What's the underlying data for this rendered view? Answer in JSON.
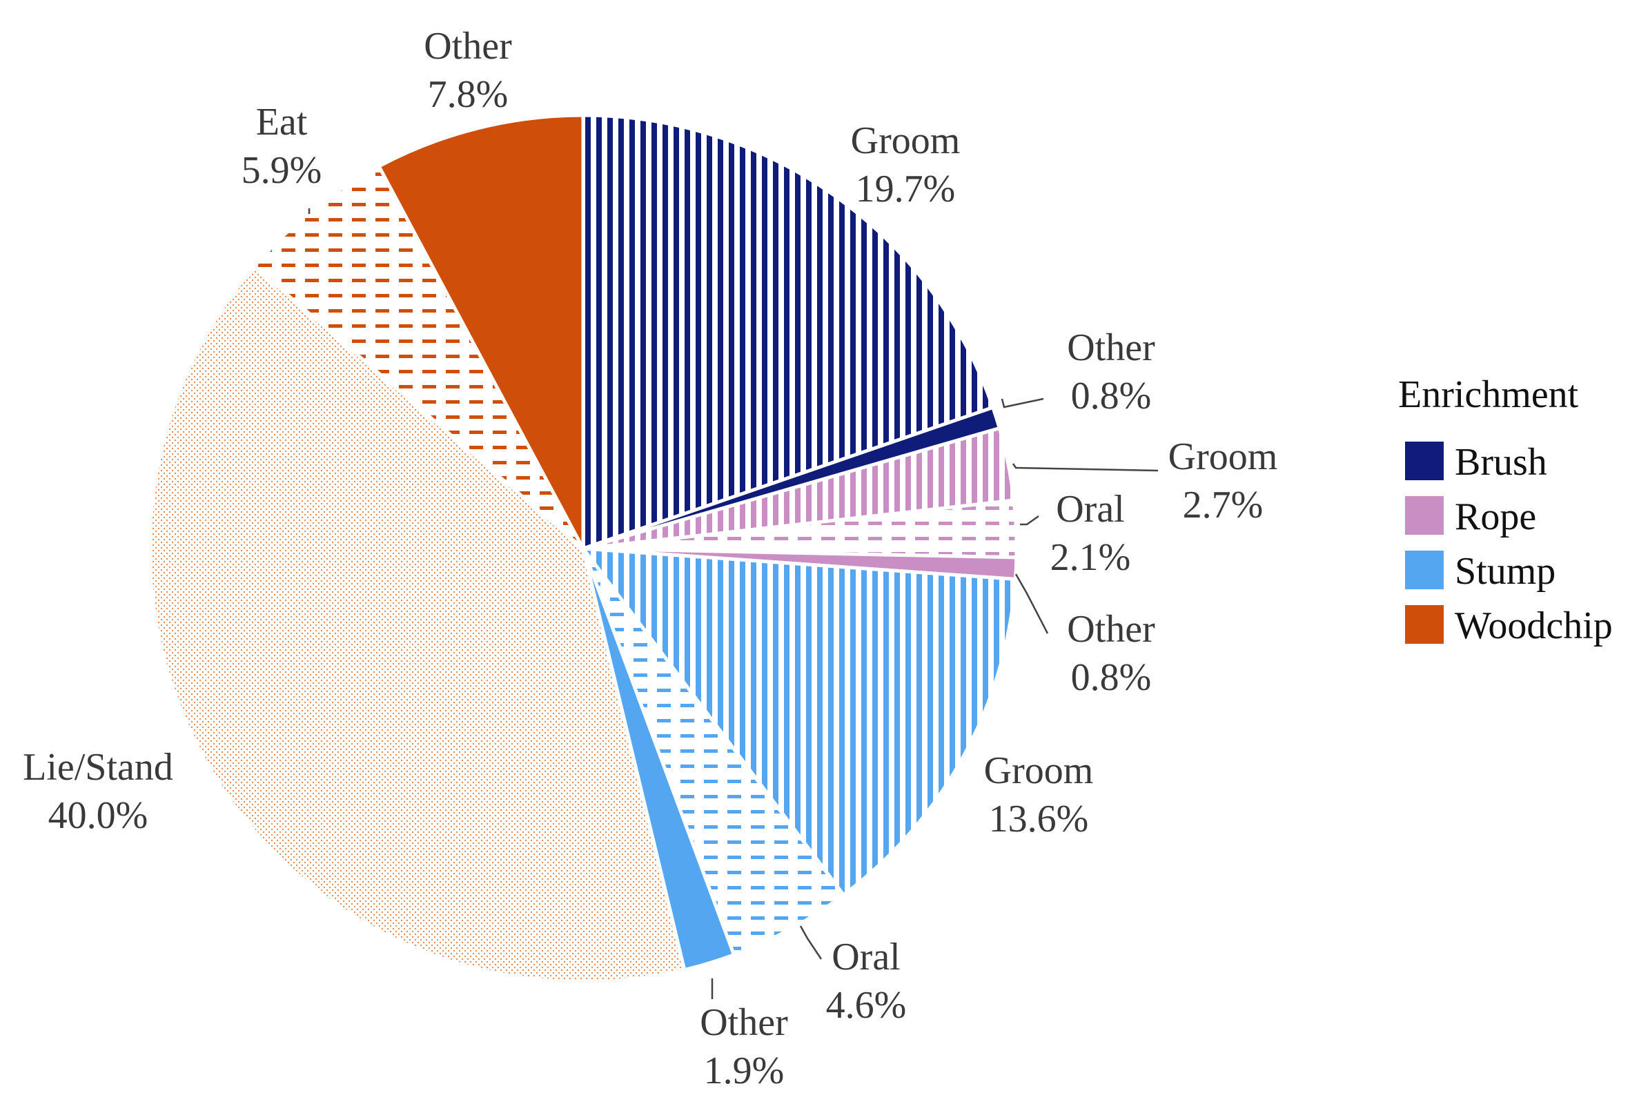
{
  "chart_data": {
    "type": "pie",
    "start_angle_deg": 0,
    "direction": "clockwise",
    "colors": {
      "Brush": "#101c7a",
      "Rope": "#c98fc4",
      "Stump": "#55a6f0",
      "Woodchip": "#cf4e0a"
    },
    "slices": [
      {
        "enrichment": "Brush",
        "behavior": "Groom",
        "value": 19.7,
        "pattern": "vstripe",
        "name_text": "Groom",
        "value_text": "19.7%",
        "leader": false
      },
      {
        "enrichment": "Brush",
        "behavior": "Other",
        "value": 0.8,
        "pattern": "solid",
        "name_text": "Other",
        "value_text": "0.8%",
        "leader": true
      },
      {
        "enrichment": "Rope",
        "behavior": "Groom",
        "value": 2.7,
        "pattern": "vstripe",
        "name_text": "Groom",
        "value_text": "2.7%",
        "leader": true
      },
      {
        "enrichment": "Rope",
        "behavior": "Oral",
        "value": 2.1,
        "pattern": "hdash",
        "name_text": "Oral",
        "value_text": "2.1%",
        "leader": true
      },
      {
        "enrichment": "Rope",
        "behavior": "Other",
        "value": 0.8,
        "pattern": "solid",
        "name_text": "Other",
        "value_text": "0.8%",
        "leader": true
      },
      {
        "enrichment": "Stump",
        "behavior": "Groom",
        "value": 13.6,
        "pattern": "vstripe",
        "name_text": "Groom",
        "value_text": "13.6%",
        "leader": false
      },
      {
        "enrichment": "Stump",
        "behavior": "Oral",
        "value": 4.6,
        "pattern": "hdash",
        "name_text": "Oral",
        "value_text": "4.6%",
        "leader": true
      },
      {
        "enrichment": "Stump",
        "behavior": "Other",
        "value": 1.9,
        "pattern": "solid",
        "name_text": "Other",
        "value_text": "1.9%",
        "leader": true
      },
      {
        "enrichment": "Woodchip",
        "behavior": "Lie/Stand",
        "value": 40.0,
        "pattern": "dots",
        "name_text": "Lie/Stand",
        "value_text": "40.0%",
        "leader": false
      },
      {
        "enrichment": "Woodchip",
        "behavior": "Eat",
        "value": 5.9,
        "pattern": "hdash",
        "name_text": "Eat",
        "value_text": "5.9%",
        "leader": true
      },
      {
        "enrichment": "Woodchip",
        "behavior": "Other",
        "value": 7.8,
        "pattern": "solid",
        "name_text": "Other",
        "value_text": "7.8%",
        "leader": false
      }
    ],
    "legend": {
      "title": "Enrichment",
      "position": "right",
      "entries": [
        "Brush",
        "Rope",
        "Stump",
        "Woodchip"
      ]
    }
  }
}
